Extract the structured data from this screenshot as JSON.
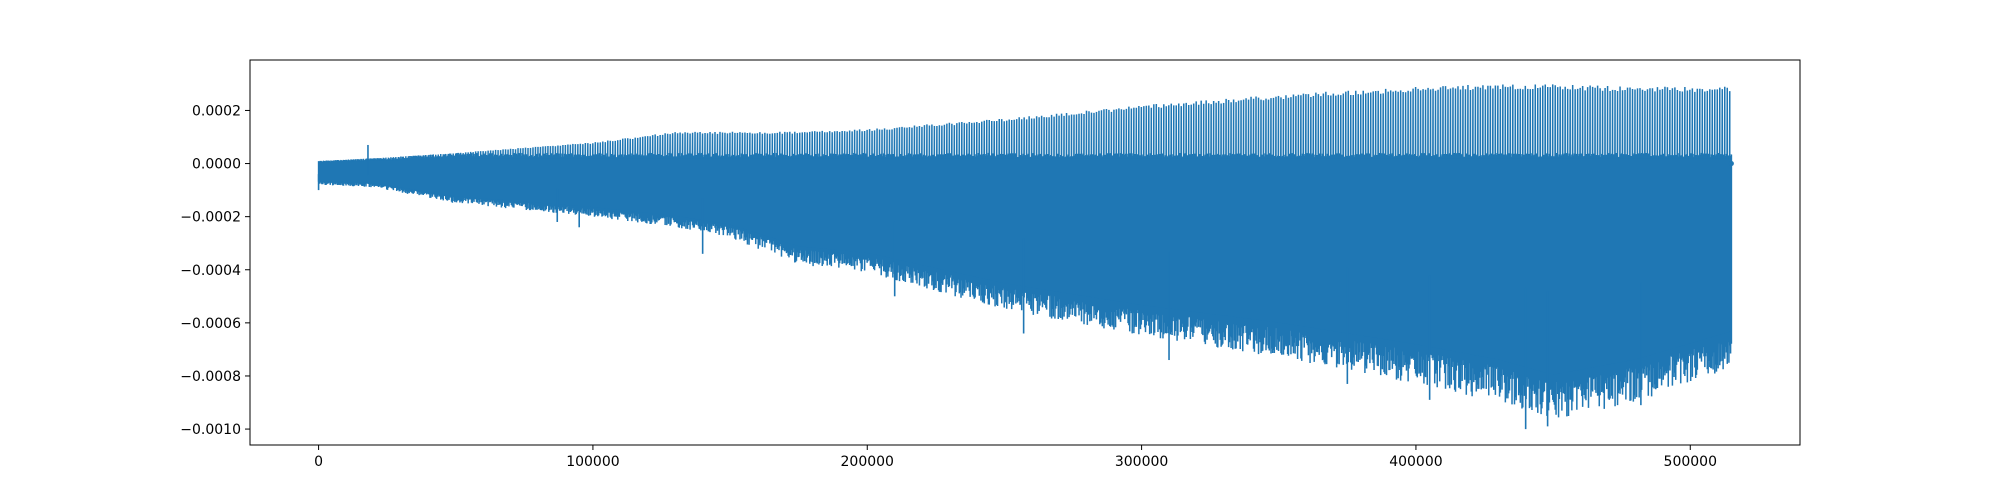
{
  "chart_data": {
    "type": "line",
    "title": "",
    "xlabel": "",
    "ylabel": "",
    "xlim": [
      -25000,
      540000
    ],
    "ylim": [
      -0.00106,
      0.00039
    ],
    "grid": false,
    "legend": "none",
    "x_ticks": [
      {
        "value": 0,
        "label": "0"
      },
      {
        "value": 100000,
        "label": "100000"
      },
      {
        "value": 200000,
        "label": "200000"
      },
      {
        "value": 300000,
        "label": "300000"
      },
      {
        "value": 400000,
        "label": "400000"
      },
      {
        "value": 500000,
        "label": "500000"
      }
    ],
    "y_ticks": [
      {
        "value": 0.0002,
        "label": "0.0002"
      },
      {
        "value": 0.0,
        "label": "0.0000"
      },
      {
        "value": -0.0002,
        "label": "−0.0002"
      },
      {
        "value": -0.0004,
        "label": "−0.0004"
      },
      {
        "value": -0.0006,
        "label": "−0.0006"
      },
      {
        "value": -0.0008,
        "label": "−0.0008"
      },
      {
        "value": -0.001,
        "label": "−0.0010"
      }
    ],
    "series": [
      {
        "color": "#1f77b4",
        "x_range": [
          0,
          515000
        ],
        "envelope": {
          "x": [
            0,
            20000,
            50000,
            100000,
            130000,
            150000,
            175000,
            200000,
            250000,
            300000,
            350000,
            400000,
            430000,
            450000,
            480000,
            515000
          ],
          "upper": [
            1e-05,
            2e-05,
            4e-05,
            8e-05,
            0.00012,
            0.00012,
            0.00012,
            0.00013,
            0.00017,
            0.00022,
            0.00026,
            0.00029,
            0.0003,
            0.0003,
            0.00029,
            0.00029
          ],
          "lower": [
            -8e-05,
            -9e-05,
            -0.00015,
            -0.0002,
            -0.00024,
            -0.00028,
            -0.00038,
            -0.00041,
            -0.00055,
            -0.00065,
            -0.00073,
            -0.00083,
            -0.0009,
            -0.00097,
            -0.0009,
            -0.00077
          ]
        },
        "spikes": [
          {
            "x": 0,
            "y": -0.0001
          },
          {
            "x": 18000,
            "y": 7e-05
          },
          {
            "x": 87000,
            "y": -0.00022
          },
          {
            "x": 95000,
            "y": -0.00024
          },
          {
            "x": 140000,
            "y": -0.00034
          },
          {
            "x": 210000,
            "y": -0.0005
          },
          {
            "x": 257000,
            "y": -0.00064
          },
          {
            "x": 310000,
            "y": -0.00074
          },
          {
            "x": 375000,
            "y": -0.00083
          },
          {
            "x": 405000,
            "y": -0.00089
          },
          {
            "x": 440000,
            "y": -0.001
          },
          {
            "x": 448000,
            "y": -0.00099
          },
          {
            "x": 482000,
            "y": -0.00091
          }
        ],
        "end_value": 0.0
      }
    ]
  }
}
